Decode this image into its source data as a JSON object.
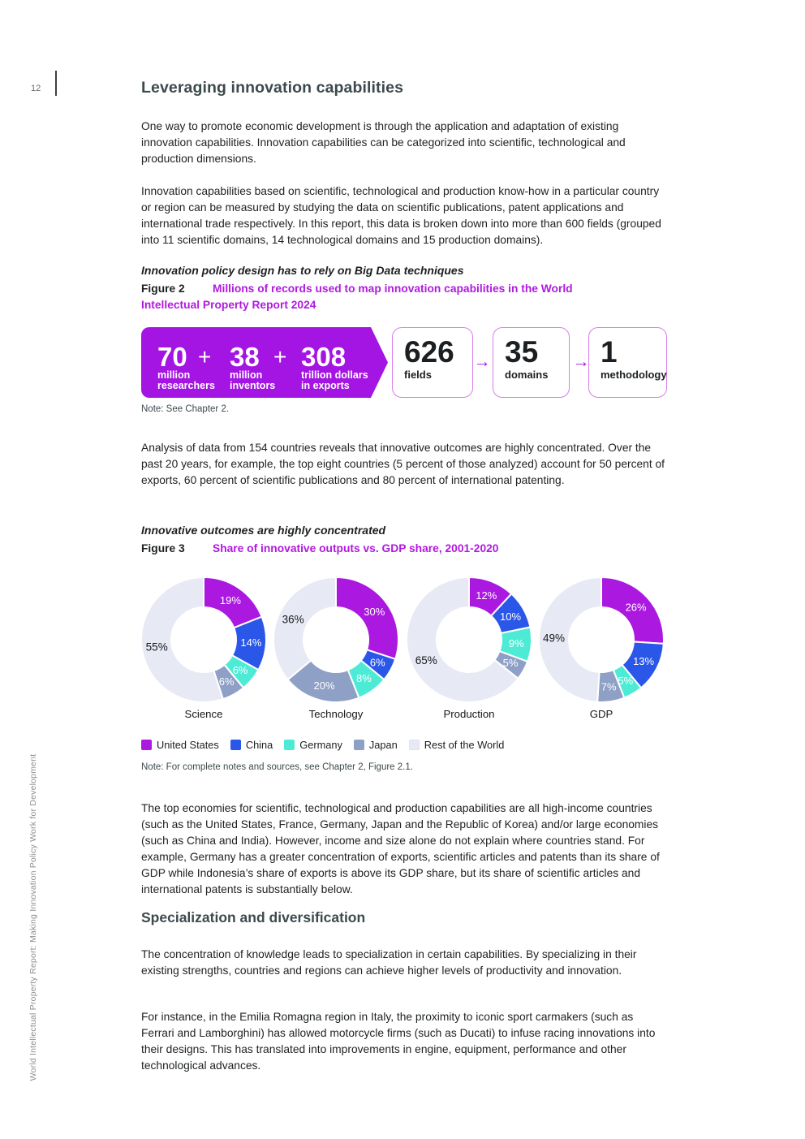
{
  "page": {
    "number": "12",
    "sidebar_text": "World Intellectual Property Report: Making Innovation Policy Work for Development"
  },
  "colors": {
    "heading": "#3c4a4d",
    "body_text": "#202325",
    "figure_title_magenta": "#b119df",
    "arrow_banner_purple": "#a414e2",
    "box_border_pink": "#d97de9"
  },
  "sections": {
    "heading1": "Leveraging innovation capabilities",
    "para1": "One way to promote economic development is through the application and adaptation of existing innovation capabilities. Innovation capabilities can be categorized into scientific, technological and production dimensions.",
    "para2": "Innovation capabilities based on scientific, technological and production know-how in a particular country or region can be measured by studying the data on scientific publications, patent applications and international trade respectively. In this report, this data is broken down into more than 600 fields (grouped into 11 scientific domains, 14 technological domains and 15 production domains).",
    "fig2": {
      "kicker": "Innovation policy design has to rely on Big Data techniques",
      "label": "Figure 2",
      "title_line1": "Millions of records used to map innovation capabilities in the World",
      "title_line2": "Intellectual Property Report 2024",
      "plus": "+",
      "flow_arrow": "→",
      "arrow_items": [
        {
          "value": "70",
          "label_line1": "million",
          "label_line2": "researchers"
        },
        {
          "value": "38",
          "label_line1": "million",
          "label_line2": "inventors"
        },
        {
          "value": "308",
          "label_line1": "trillion dollars",
          "label_line2": "in exports"
        }
      ],
      "boxes": [
        {
          "value": "626",
          "label": "fields"
        },
        {
          "value": "35",
          "label": "domains"
        },
        {
          "value": "1",
          "label": "methodology"
        }
      ],
      "note": "Note: See Chapter 2."
    },
    "para3": "Analysis of data from 154 countries reveals that innovative outcomes are highly concentrated. Over the past 20 years, for example, the top eight countries (5 percent of those analyzed) account for 50 percent of exports, 60 percent of scientific publications and 80 percent of international patenting.",
    "fig3": {
      "kicker": "Innovative outcomes are highly concentrated",
      "label": "Figure 3",
      "title": "Share of innovative outputs vs. GDP share, 2001-2020",
      "note": "Note: For complete notes and sources, see Chapter 2,  Figure 2.1."
    },
    "para4": "The top economies for scientific, technological and production capabilities are all high-income countries (such as the United States, France, Germany, Japan and the Republic of Korea) and/or large economies (such as China and India). However, income and size alone do not explain where countries stand. For example, Germany has a greater concentration of exports, scientific articles and patents than its share of GDP while Indonesia’s share of exports is above its GDP share, but its share of scientific articles and international patents is substantially below.",
    "heading2": "Specialization and diversification",
    "para5": "The concentration of knowledge leads to specialization in certain capabilities. By specializing in their existing strengths, countries and regions can achieve higher levels of productivity and innovation.",
    "para6": "For instance, in the Emilia Romagna region in Italy, the proximity to iconic sport carmakers (such as Ferrari and Lamborghini) has allowed motorcycle firms (such as Ducati) to infuse racing innovations into their designs. This has translated into improvements in engine, equipment, performance and other technological advances."
  },
  "chart_data": {
    "type": "pie",
    "subtype": "donut",
    "title": "Share of innovative outputs vs. GDP share, 2001-2020",
    "legend_position": "bottom",
    "legend": [
      {
        "label": "United States",
        "color": "#ab18e0"
      },
      {
        "label": "China",
        "color": "#2a57e8"
      },
      {
        "label": "Germany",
        "color": "#4debd5"
      },
      {
        "label": "Japan",
        "color": "#8fa0c6"
      },
      {
        "label": "Rest of the World",
        "color": "#e7e9f5"
      }
    ],
    "charts": [
      {
        "category": "Science",
        "values": [
          19,
          14,
          6,
          6,
          55
        ],
        "labels": [
          "19%",
          "14%",
          "6%",
          "6%",
          "55%"
        ]
      },
      {
        "category": "Technology",
        "values": [
          30,
          6,
          8,
          20,
          36
        ],
        "labels": [
          "30%",
          "6%",
          "8%",
          "20%",
          "36%"
        ]
      },
      {
        "category": "Production",
        "values": [
          12,
          10,
          9,
          5,
          65
        ],
        "labels": [
          "12%",
          "10%",
          "9%",
          "5%",
          "65%"
        ]
      },
      {
        "category": "GDP",
        "values": [
          26,
          13,
          5,
          7,
          49
        ],
        "labels": [
          "26%",
          "13%",
          "5%",
          "7%",
          "49%"
        ]
      }
    ]
  }
}
